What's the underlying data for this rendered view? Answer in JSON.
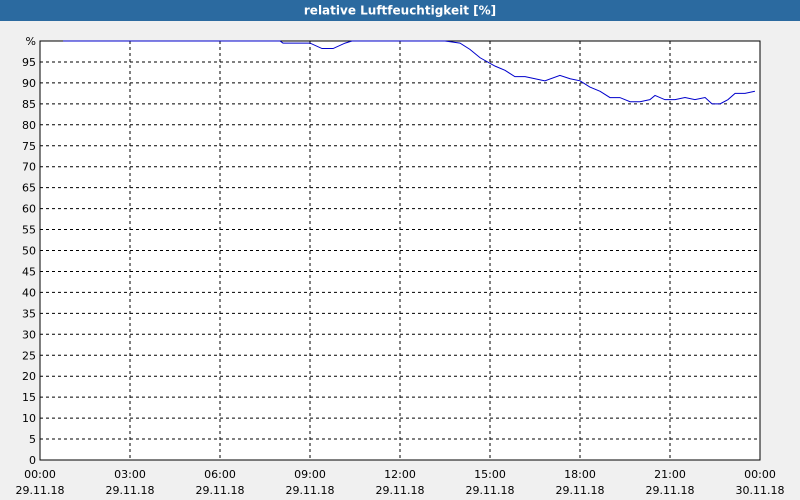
{
  "chart_data": {
    "type": "line",
    "title": "relative Luftfeuchtigkeit [%]",
    "x": [
      0.77,
      2,
      4,
      6,
      8,
      8.1,
      9,
      9.4,
      9.77,
      10.17,
      10.4,
      11,
      13,
      13.5,
      14,
      14.33,
      14.67,
      15.17,
      15.5,
      15.83,
      16.17,
      16.5,
      16.83,
      17.33,
      17.67,
      18,
      18.33,
      18.67,
      19,
      19.33,
      19.67,
      20,
      20.33,
      20.5,
      20.83,
      21.17,
      21.5,
      21.83,
      22.17,
      22.4,
      22.67,
      22.93,
      23.17,
      23.5,
      23.83
    ],
    "series": [
      {
        "name": "relative Luftfeuchtigkeit",
        "color": "#0000cc",
        "values": [
          100,
          100,
          100,
          100,
          100,
          99.5,
          99.5,
          98.2,
          98.2,
          99.5,
          100,
          100,
          100,
          100,
          99.5,
          98,
          96,
          94,
          93,
          91.5,
          91.5,
          91,
          90.5,
          91.8,
          91,
          90.5,
          89,
          88,
          86.5,
          86.5,
          85.5,
          85.5,
          86,
          87,
          86,
          86,
          86.5,
          86,
          86.5,
          85,
          85,
          86,
          87.5,
          87.5,
          88
        ]
      }
    ],
    "xlim": [
      0,
      24
    ],
    "xticks": [
      {
        "value": 0,
        "label": "00:00",
        "date": "29.11.18"
      },
      {
        "value": 3,
        "label": "03:00",
        "date": "29.11.18"
      },
      {
        "value": 6,
        "label": "06:00",
        "date": "29.11.18"
      },
      {
        "value": 9,
        "label": "09:00",
        "date": "29.11.18"
      },
      {
        "value": 12,
        "label": "12:00",
        "date": "29.11.18"
      },
      {
        "value": 15,
        "label": "15:00",
        "date": "29.11.18"
      },
      {
        "value": 18,
        "label": "18:00",
        "date": "29.11.18"
      },
      {
        "value": 21,
        "label": "21:00",
        "date": "29.11.18"
      },
      {
        "value": 24,
        "label": "00:00",
        "date": "30.11.18"
      }
    ],
    "ylim": [
      0,
      100
    ],
    "yticks": [
      0,
      5,
      10,
      15,
      20,
      25,
      30,
      35,
      40,
      45,
      50,
      55,
      60,
      65,
      70,
      75,
      80,
      85,
      90,
      95,
      {
        "value": 100,
        "label": "%"
      }
    ],
    "grid": true
  }
}
